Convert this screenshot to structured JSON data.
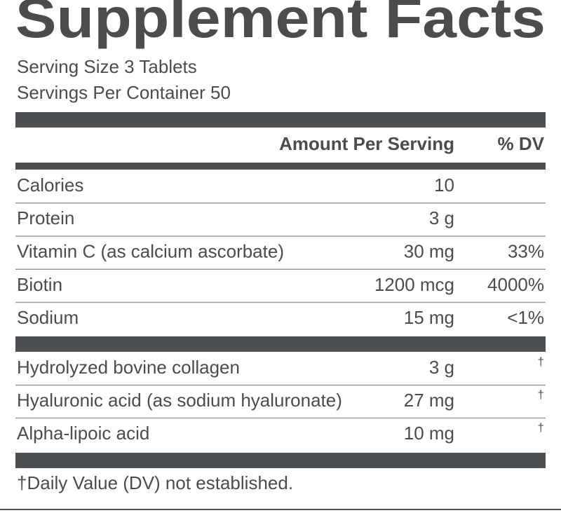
{
  "title": "Supplement Facts",
  "serving_size": "Serving Size 3 Tablets",
  "servings_per_container": "Servings Per Container 50",
  "header": {
    "amount": "Amount Per Serving",
    "dv": "% DV"
  },
  "nutrients": [
    {
      "name": "Calories",
      "amount": "10"
    },
    {
      "name": "Protein",
      "amount": "3 g"
    },
    {
      "name": "Vitamin C (as calcium ascorbate)",
      "amount": "30 mg",
      "dv": "33%"
    },
    {
      "name": "Biotin",
      "amount": "1200 mcg",
      "dv": "4000%"
    },
    {
      "name": "Sodium",
      "amount": "15 mg",
      "dv": "<1%"
    }
  ],
  "ingredients": [
    {
      "name": "Hydrolyzed bovine collagen",
      "amount": "3 g",
      "dv": "†"
    },
    {
      "name": "Hyaluronic acid (as sodium hyaluronate)",
      "amount": "27 mg",
      "dv": "†"
    },
    {
      "name": "Alpha-lipoic acid",
      "amount": "10 mg",
      "dv": "†"
    }
  ],
  "footnote": "†Daily Value (DV) not established."
}
